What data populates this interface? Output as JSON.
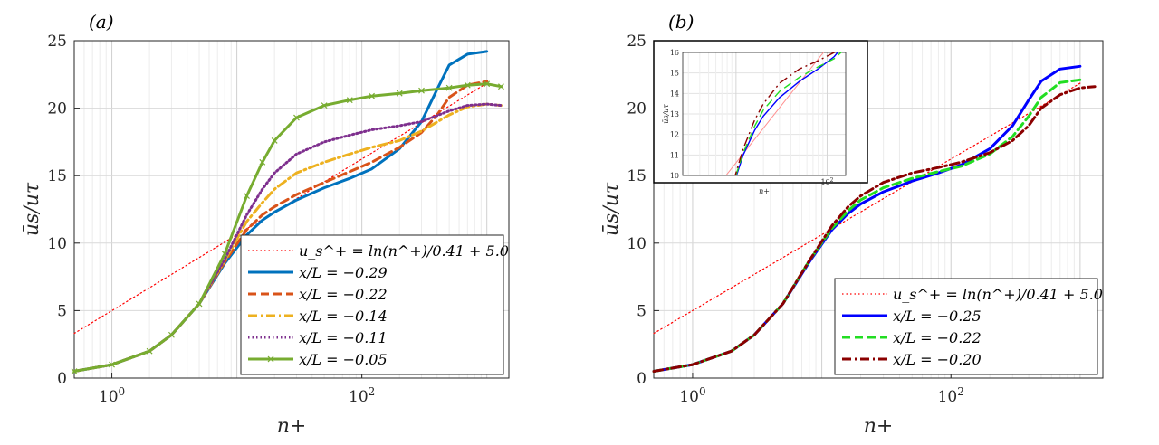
{
  "chart_data": [
    {
      "type": "line",
      "panel_label": "(a)",
      "xlabel": "n+",
      "ylabel": "ūs/uτ",
      "xscale": "log",
      "xlim": [
        0.5,
        1500
      ],
      "ylim": [
        0,
        25
      ],
      "xticks": [
        "10^0",
        "10^2"
      ],
      "yticks": [
        0,
        5,
        10,
        15,
        20,
        25
      ],
      "grid": true,
      "legend_placement": "bottom-right",
      "series": [
        {
          "name": "u_s^+ = ln(n^+)/0.41 + 5.0",
          "color": "#ff0000",
          "style": "dotted",
          "x": [
            0.5,
            1,
            3,
            10,
            30,
            100,
            300,
            1000
          ],
          "y": [
            3.31,
            5.0,
            7.68,
            10.62,
            13.3,
            16.23,
            18.91,
            21.85
          ]
        },
        {
          "name": "x/L = −0.29",
          "color": "#0072bd",
          "style": "solid",
          "x": [
            0.5,
            1,
            2,
            3,
            5,
            8,
            12,
            16,
            20,
            30,
            50,
            80,
            120,
            200,
            300,
            400,
            500,
            700,
            1000
          ],
          "y": [
            0.5,
            1.0,
            2.0,
            3.2,
            5.5,
            8.5,
            10.6,
            11.7,
            12.3,
            13.2,
            14.1,
            14.8,
            15.5,
            17.0,
            19.0,
            21.4,
            23.2,
            24.0,
            24.2
          ]
        },
        {
          "name": "x/L = −0.22",
          "color": "#d95319",
          "style": "dashed",
          "x": [
            0.5,
            1,
            2,
            3,
            5,
            8,
            12,
            16,
            20,
            30,
            50,
            80,
            120,
            200,
            300,
            400,
            500,
            700,
            1000
          ],
          "y": [
            0.5,
            1.0,
            2.0,
            3.2,
            5.5,
            8.6,
            11.0,
            12.1,
            12.7,
            13.6,
            14.5,
            15.3,
            16.0,
            17.1,
            18.2,
            19.5,
            20.8,
            21.7,
            22.0
          ]
        },
        {
          "name": "x/L = −0.14",
          "color": "#edb120",
          "style": "dashdot",
          "x": [
            0.5,
            1,
            2,
            3,
            5,
            8,
            12,
            16,
            20,
            30,
            50,
            80,
            120,
            200,
            300,
            500,
            700,
            1000,
            1300
          ],
          "y": [
            0.5,
            1.0,
            2.0,
            3.2,
            5.5,
            8.7,
            11.6,
            13.0,
            14.0,
            15.2,
            16.0,
            16.6,
            17.1,
            17.6,
            18.3,
            19.5,
            20.1,
            20.3,
            20.2
          ]
        },
        {
          "name": "x/L = −0.11",
          "color": "#7e2f8e",
          "style": "dotted",
          "x": [
            0.5,
            1,
            2,
            3,
            5,
            8,
            12,
            16,
            20,
            30,
            50,
            80,
            120,
            200,
            300,
            500,
            700,
            1000,
            1300
          ],
          "y": [
            0.5,
            1.0,
            2.0,
            3.2,
            5.5,
            8.8,
            12.1,
            14.0,
            15.2,
            16.6,
            17.5,
            18.0,
            18.4,
            18.7,
            19.0,
            19.8,
            20.2,
            20.3,
            20.2
          ]
        },
        {
          "name": "x/L = −0.05",
          "color": "#77ac30",
          "style": "solid-x",
          "x": [
            0.5,
            1,
            2,
            3,
            5,
            8,
            12,
            16,
            20,
            30,
            50,
            80,
            120,
            200,
            300,
            500,
            700,
            1000,
            1300
          ],
          "y": [
            0.5,
            1.0,
            2.0,
            3.2,
            5.5,
            9.2,
            13.5,
            16.0,
            17.6,
            19.3,
            20.2,
            20.6,
            20.9,
            21.1,
            21.3,
            21.5,
            21.7,
            21.8,
            21.6
          ]
        }
      ]
    },
    {
      "type": "line",
      "panel_label": "(b)",
      "xlabel": "n+",
      "ylabel": "ūs/uτ",
      "xscale": "log",
      "xlim": [
        0.5,
        1500
      ],
      "ylim": [
        0,
        25
      ],
      "xticks": [
        "10^0",
        "10^2"
      ],
      "yticks": [
        0,
        5,
        10,
        15,
        20,
        25
      ],
      "grid": true,
      "legend_placement": "bottom-right",
      "series": [
        {
          "name": "u_s^+ = ln(n^+)/0.41 + 5.0",
          "color": "#ff0000",
          "style": "dotted",
          "x": [
            0.5,
            1,
            3,
            10,
            30,
            100,
            300,
            1000
          ],
          "y": [
            3.31,
            5.0,
            7.68,
            10.62,
            13.3,
            16.23,
            18.91,
            21.85
          ]
        },
        {
          "name": "x/L = −0.25",
          "color": "#0000ff",
          "style": "solid",
          "x": [
            0.5,
            1,
            2,
            3,
            5,
            8,
            12,
            16,
            20,
            30,
            50,
            80,
            120,
            200,
            300,
            400,
            500,
            700,
            1000
          ],
          "y": [
            0.5,
            1.0,
            2.0,
            3.2,
            5.5,
            8.6,
            11.0,
            12.2,
            12.9,
            13.8,
            14.6,
            15.2,
            15.8,
            17.0,
            18.7,
            20.6,
            22.0,
            22.9,
            23.1
          ]
        },
        {
          "name": "x/L = −0.22",
          "color": "#22dd22",
          "style": "dashed",
          "x": [
            0.5,
            1,
            2,
            3,
            5,
            8,
            12,
            16,
            20,
            30,
            50,
            80,
            120,
            200,
            300,
            400,
            500,
            700,
            1000
          ],
          "y": [
            0.5,
            1.0,
            2.0,
            3.2,
            5.5,
            8.7,
            11.1,
            12.4,
            13.2,
            14.1,
            14.8,
            15.3,
            15.7,
            16.6,
            17.9,
            19.4,
            20.8,
            21.9,
            22.1
          ]
        },
        {
          "name": "x/L = −0.20",
          "color": "#8b0000",
          "style": "dashdot",
          "x": [
            0.5,
            1,
            2,
            3,
            5,
            8,
            12,
            16,
            20,
            30,
            50,
            80,
            120,
            200,
            300,
            400,
            500,
            700,
            1000,
            1300
          ],
          "y": [
            0.5,
            1.0,
            2.0,
            3.2,
            5.5,
            8.7,
            11.3,
            12.7,
            13.5,
            14.5,
            15.2,
            15.6,
            16.0,
            16.7,
            17.6,
            18.7,
            20.0,
            21.0,
            21.5,
            21.6
          ]
        }
      ],
      "inset": {
        "ylabel": "ūs/uτ",
        "xlabel": "n+",
        "ylim": [
          10,
          16
        ],
        "yticks": [
          10,
          11,
          12,
          13,
          14,
          15,
          16
        ],
        "xticks": [
          "10^2"
        ]
      }
    }
  ]
}
